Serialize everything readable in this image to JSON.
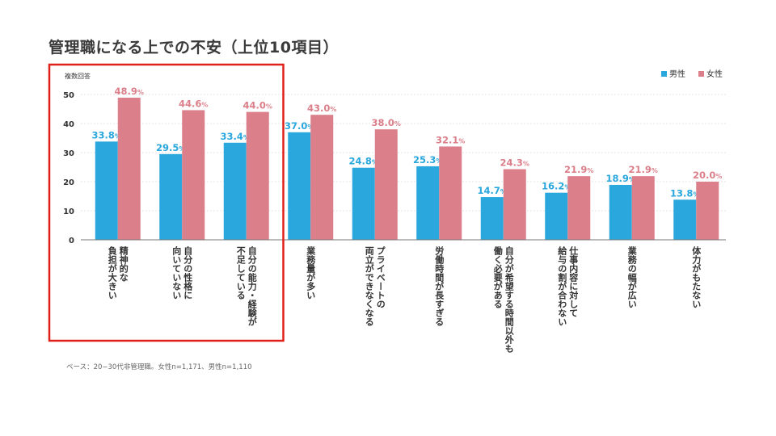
{
  "chart_data": {
    "type": "bar",
    "title": "管理職になる上での不安（上位10項目）",
    "ylabel": "複数回答",
    "ylim": [
      0,
      50
    ],
    "yticks": [
      0,
      10,
      20,
      30,
      40,
      50
    ],
    "legend_position": "top-right",
    "value_suffix": "%",
    "categories": [
      [
        "精神的な",
        "負担が大きい"
      ],
      [
        "自分の性格に",
        "向いていない"
      ],
      [
        "自分の能力・経験が",
        "不足している"
      ],
      [
        "業務量が多い"
      ],
      [
        "プライベートの",
        "両立ができなくなる"
      ],
      [
        "労働時間が長すぎる"
      ],
      [
        "自分が希望する時間以外も",
        "働く必要がある"
      ],
      [
        "仕事内容に対して",
        "給与の割が合わない"
      ],
      [
        "業務の幅が広い"
      ],
      [
        "体力がもたない"
      ]
    ],
    "series": [
      {
        "name": "男性",
        "color": "#2aa7dc",
        "values": [
          33.8,
          29.5,
          33.4,
          37.0,
          24.8,
          25.3,
          14.7,
          16.2,
          18.9,
          13.8
        ]
      },
      {
        "name": "女性",
        "color": "#db7f8a",
        "values": [
          48.9,
          44.6,
          44.0,
          43.0,
          38.0,
          32.1,
          24.3,
          21.9,
          21.9,
          20.0
        ]
      }
    ],
    "highlight_categories": [
      0,
      1,
      2
    ],
    "highlight_color": "#e0201b"
  },
  "footnote": "ベース：20−30代非管理職。女性n=1,171、男性n=1,110"
}
